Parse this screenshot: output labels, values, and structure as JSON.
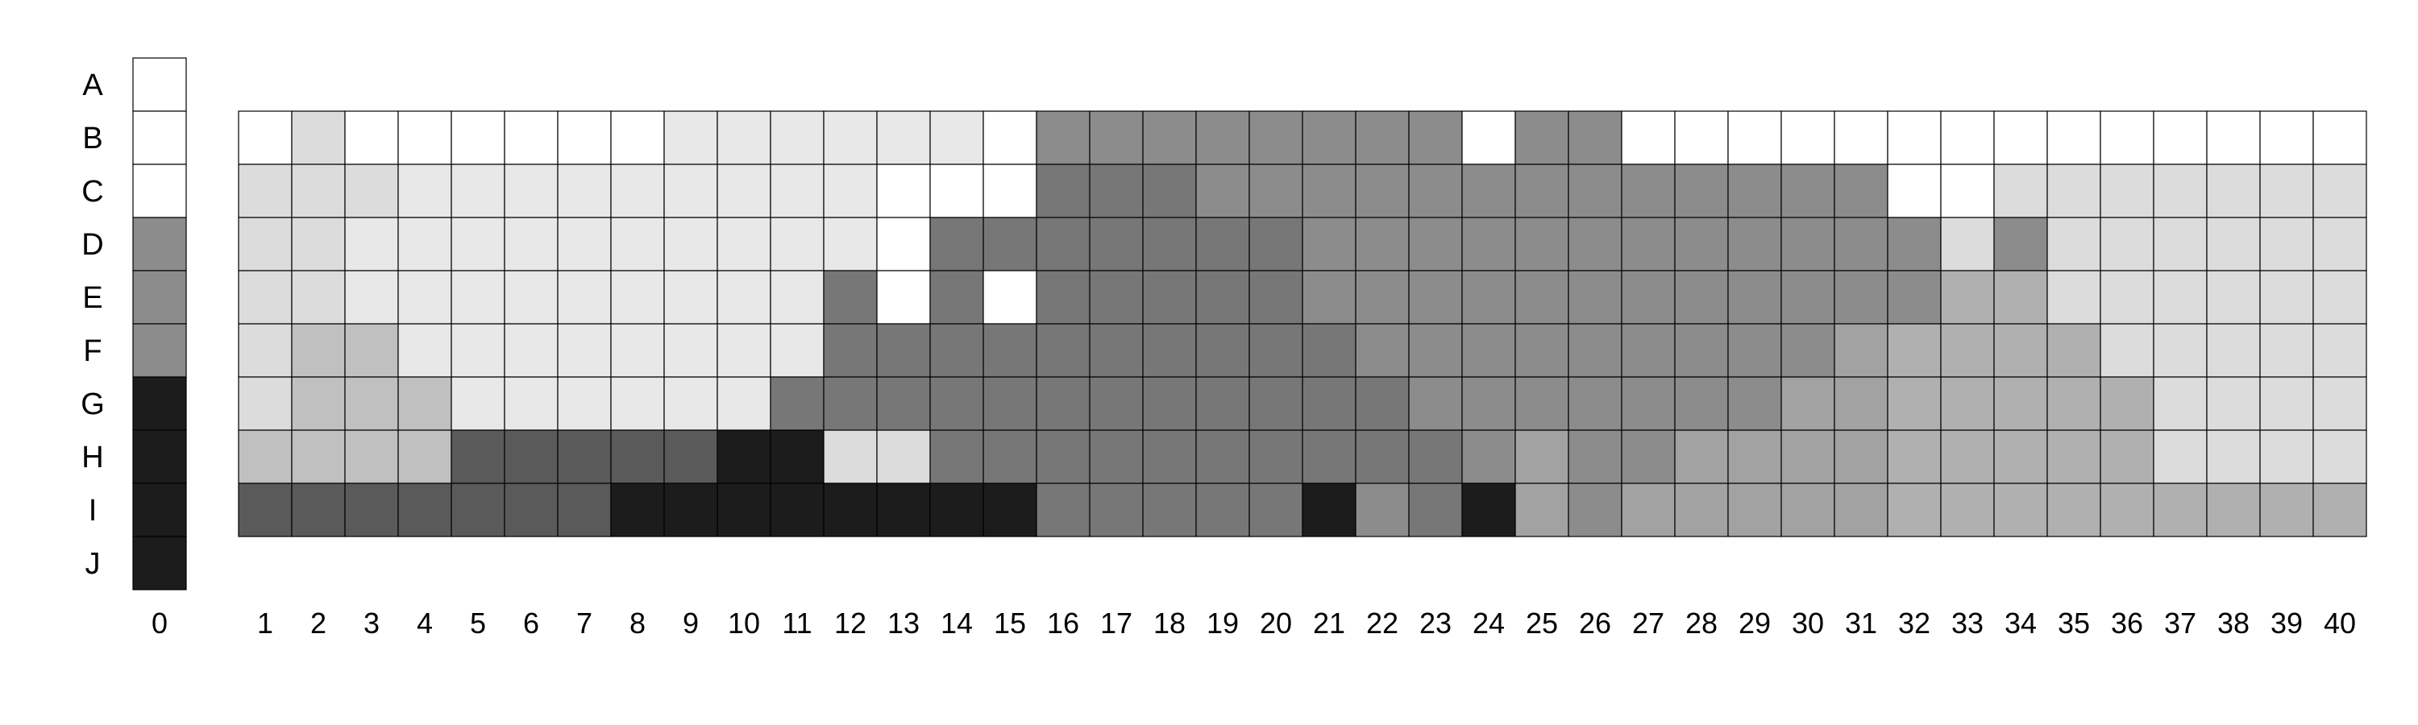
{
  "chart_data": {
    "type": "heatmap",
    "row_labels": [
      "A",
      "B",
      "C",
      "D",
      "E",
      "F",
      "G",
      "H",
      "I",
      "J"
    ],
    "key_column": {
      "label": "0",
      "rows": [
        "A",
        "B",
        "C",
        "D",
        "E",
        "F",
        "G",
        "H",
        "I",
        "J"
      ],
      "levels": [
        0,
        0,
        0,
        6,
        6,
        6,
        9,
        9,
        9,
        9
      ]
    },
    "grid": {
      "columns": [
        "1",
        "2",
        "3",
        "4",
        "5",
        "6",
        "7",
        "8",
        "9",
        "10",
        "11",
        "12",
        "13",
        "14",
        "15",
        "16",
        "17",
        "18",
        "19",
        "20",
        "21",
        "22",
        "23",
        "24",
        "25",
        "26",
        "27",
        "28",
        "29",
        "30",
        "31",
        "32",
        "33",
        "34",
        "35",
        "36",
        "37",
        "38",
        "39",
        "40"
      ],
      "rows": [
        "B",
        "C",
        "D",
        "E",
        "F",
        "G",
        "H",
        "I"
      ],
      "levels": [
        [
          0,
          2,
          0,
          0,
          0,
          0,
          0,
          0,
          1,
          1,
          1,
          1,
          1,
          1,
          0,
          6,
          6,
          6,
          6,
          6,
          6,
          6,
          6,
          0,
          6,
          6,
          0,
          0,
          0,
          0,
          0,
          0,
          0,
          0,
          0,
          0,
          0,
          0,
          0,
          0
        ],
        [
          2,
          2,
          2,
          1,
          1,
          1,
          1,
          1,
          1,
          1,
          1,
          1,
          0,
          0,
          0,
          7,
          7,
          7,
          6,
          6,
          6,
          6,
          6,
          6,
          6,
          6,
          6,
          6,
          6,
          6,
          6,
          0,
          0,
          2,
          2,
          2,
          2,
          2,
          2,
          2
        ],
        [
          2,
          2,
          1,
          1,
          1,
          1,
          1,
          1,
          1,
          1,
          1,
          1,
          0,
          7,
          7,
          7,
          7,
          7,
          7,
          7,
          6,
          6,
          6,
          6,
          6,
          6,
          6,
          6,
          6,
          6,
          6,
          6,
          2,
          6,
          2,
          2,
          2,
          2,
          2,
          2
        ],
        [
          2,
          2,
          1,
          1,
          1,
          1,
          1,
          1,
          1,
          1,
          1,
          7,
          0,
          7,
          0,
          7,
          7,
          7,
          7,
          7,
          6,
          6,
          6,
          6,
          6,
          6,
          6,
          6,
          6,
          6,
          6,
          6,
          4,
          4,
          2,
          2,
          2,
          2,
          2,
          2
        ],
        [
          2,
          3,
          3,
          1,
          1,
          1,
          1,
          1,
          1,
          1,
          1,
          7,
          7,
          7,
          7,
          7,
          7,
          7,
          7,
          7,
          7,
          6,
          6,
          6,
          6,
          6,
          6,
          6,
          6,
          6,
          5,
          4,
          4,
          4,
          4,
          2,
          2,
          2,
          2,
          2
        ],
        [
          2,
          3,
          3,
          3,
          1,
          1,
          1,
          1,
          1,
          1,
          7,
          7,
          7,
          7,
          7,
          7,
          7,
          7,
          7,
          7,
          7,
          7,
          6,
          6,
          6,
          6,
          6,
          6,
          6,
          5,
          5,
          4,
          4,
          4,
          4,
          4,
          2,
          2,
          2,
          2
        ],
        [
          3,
          3,
          3,
          3,
          8,
          8,
          8,
          8,
          8,
          9,
          9,
          2,
          2,
          7,
          7,
          7,
          7,
          7,
          7,
          7,
          7,
          7,
          7,
          6,
          5,
          6,
          6,
          5,
          5,
          5,
          5,
          4,
          4,
          4,
          4,
          4,
          2,
          2,
          2,
          2
        ],
        [
          8,
          8,
          8,
          8,
          8,
          8,
          8,
          9,
          9,
          9,
          9,
          9,
          9,
          9,
          9,
          7,
          7,
          7,
          7,
          7,
          9,
          6,
          7,
          9,
          5,
          6,
          5,
          5,
          5,
          5,
          5,
          4,
          4,
          4,
          4,
          4,
          4,
          4,
          4,
          4
        ]
      ]
    },
    "palette": [
      "#ffffff",
      "#e8e8e8",
      "#dcdcdc",
      "#c0c0c0",
      "#b0b0b0",
      "#a2a2a2",
      "#8c8c8c",
      "#777777",
      "#5a5a5a",
      "#1c1c1c"
    ]
  }
}
